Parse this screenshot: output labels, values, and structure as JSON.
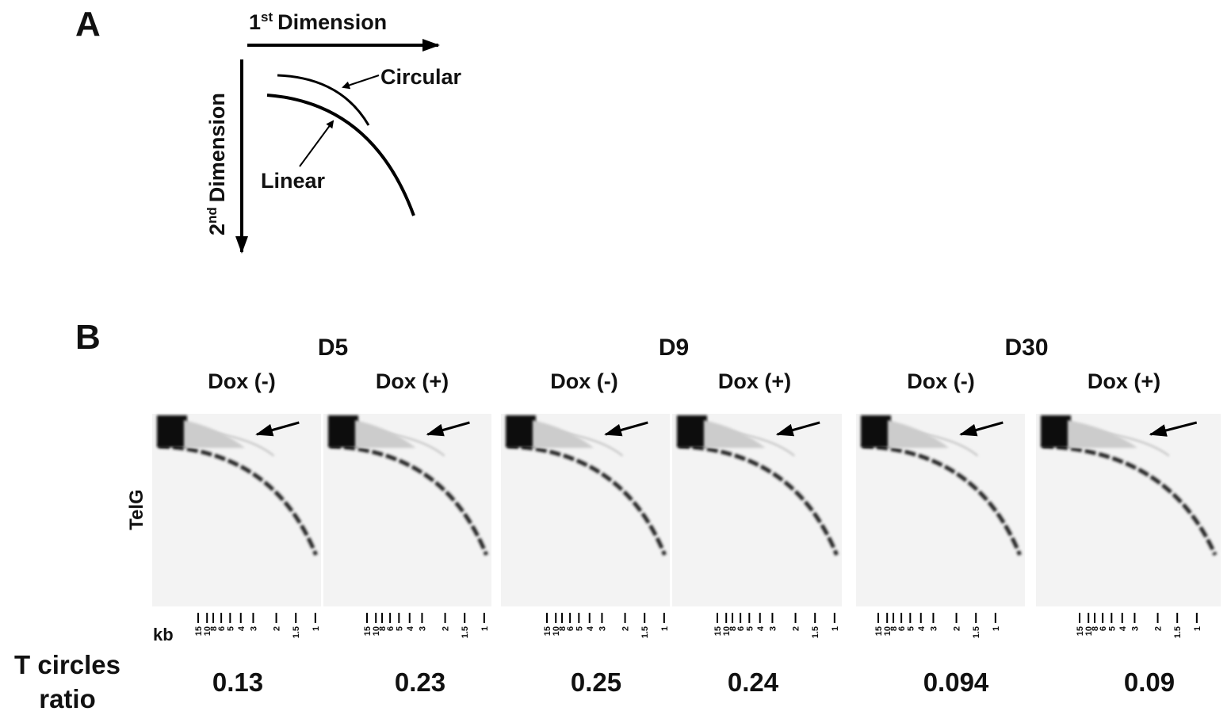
{
  "panel_a": {
    "label": "A",
    "first_dimension": {
      "number": "1",
      "suffix": "st",
      "text": "Dimension"
    },
    "second_dimension": {
      "number": "2",
      "suffix": "nd",
      "text": "Dimension"
    },
    "circular": "Circular",
    "linear": "Linear"
  },
  "panel_b": {
    "label": "B",
    "probe": "TelG",
    "kb_unit": "kb",
    "kb_markers": [
      "15",
      "10",
      "8",
      "6",
      "5",
      "4",
      "3",
      "2",
      "1.5",
      "1"
    ],
    "groups": [
      {
        "name": "D5",
        "conditions": [
          "Dox (-)",
          "Dox (+)"
        ]
      },
      {
        "name": "D9",
        "conditions": [
          "Dox (-)",
          "Dox (+)"
        ]
      },
      {
        "name": "D30",
        "conditions": [
          "Dox (-)",
          "Dox (+)"
        ]
      }
    ],
    "ratio_label": [
      "T circles",
      "ratio"
    ],
    "ratios": [
      0.13,
      0.23,
      0.25,
      0.24,
      0.094,
      0.09
    ]
  }
}
